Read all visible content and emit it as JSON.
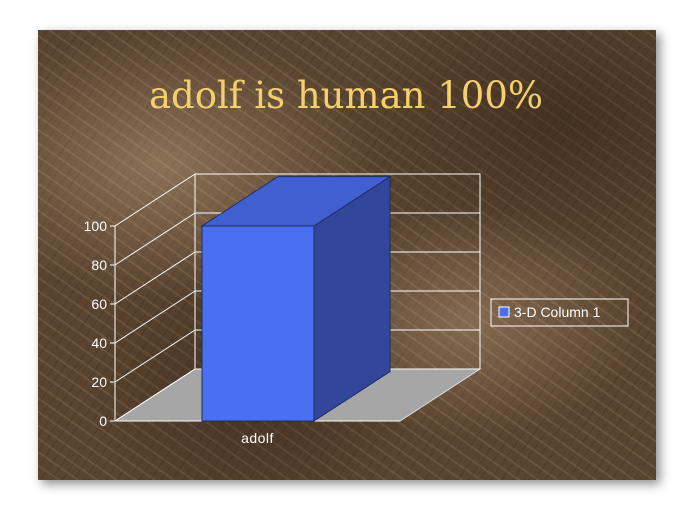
{
  "slide": {
    "title": "adolf is human 100%",
    "title_color": "#f4cf6e"
  },
  "chart_data": {
    "type": "bar",
    "style": "3-D column",
    "title": "adolf is human 100%",
    "categories": [
      "adolf"
    ],
    "series": [
      {
        "name": "3-D Column 1",
        "values": [
          100
        ],
        "color": "#4a6ff0"
      }
    ],
    "ylim": [
      0,
      100
    ],
    "yticks": [
      0,
      20,
      40,
      60,
      80,
      100
    ],
    "xlabel": "",
    "ylabel": "",
    "grid": true,
    "legend": "right",
    "floor_color": "#a6a6a6"
  }
}
